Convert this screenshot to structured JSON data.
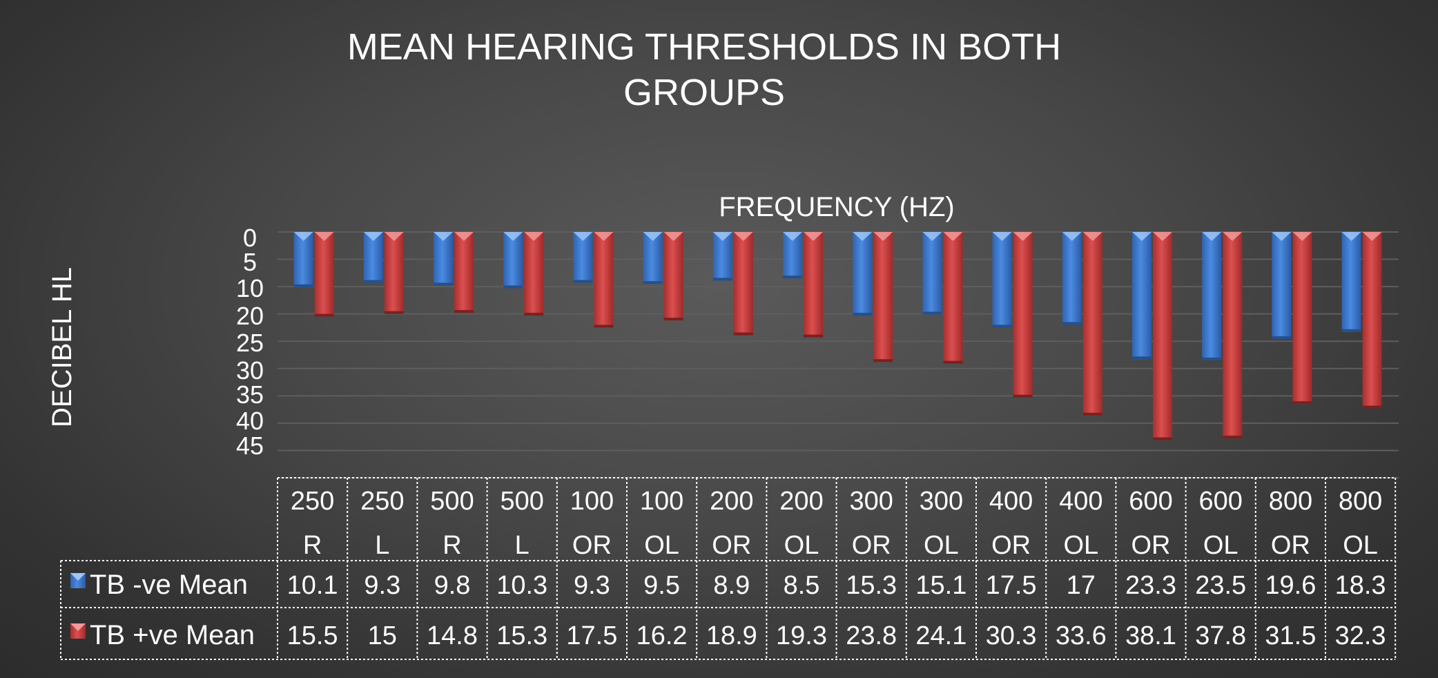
{
  "chart_data": {
    "type": "bar",
    "title_lines": [
      "MEAN HEARING THRESHOLDS IN BOTH",
      "GROUPS"
    ],
    "xlabel": "FREQUENCY (HZ)",
    "ylabel": "DECIBEL HL",
    "y_tick_labels": [
      "0",
      "5",
      "10",
      "20",
      "25",
      "30",
      "35",
      "40",
      "45"
    ],
    "categories": [
      [
        "250",
        "R"
      ],
      [
        "250",
        "L"
      ],
      [
        "500",
        "R"
      ],
      [
        "500",
        "L"
      ],
      [
        "100",
        "OR"
      ],
      [
        "100",
        "OL"
      ],
      [
        "200",
        "OR"
      ],
      [
        "200",
        "OL"
      ],
      [
        "300",
        "OR"
      ],
      [
        "300",
        "OL"
      ],
      [
        "400",
        "OR"
      ],
      [
        "400",
        "OL"
      ],
      [
        "600",
        "OR"
      ],
      [
        "600",
        "OL"
      ],
      [
        "800",
        "OR"
      ],
      [
        "800",
        "OL"
      ]
    ],
    "series": [
      {
        "name": "TB -ve Mean",
        "color": "#3f7bd0",
        "values": [
          10.1,
          9.3,
          9.8,
          10.3,
          9.3,
          9.5,
          8.9,
          8.5,
          15.3,
          15.1,
          17.5,
          17,
          23.3,
          23.5,
          19.6,
          18.3
        ],
        "labels": [
          "10.1",
          "9.3",
          "9.8",
          "10.3",
          "9.3",
          "9.5",
          "8.9",
          "8.5",
          "15.3",
          "15.1",
          "17.5",
          "17",
          "23.3",
          "23.5",
          "19.6",
          "18.3"
        ]
      },
      {
        "name": "TB +ve Mean",
        "color": "#c83c3c",
        "values": [
          15.5,
          15,
          14.8,
          15.3,
          17.5,
          16.2,
          18.9,
          19.3,
          23.8,
          24.1,
          30.3,
          33.6,
          38.1,
          37.8,
          31.5,
          32.3
        ],
        "labels": [
          "15.5",
          "15",
          "14.8",
          "15.3",
          "17.5",
          "16.2",
          "18.9",
          "19.3",
          "23.8",
          "24.1",
          "30.3",
          "33.6",
          "38.1",
          "37.8",
          "31.5",
          "32.3"
        ]
      }
    ],
    "ylim": [
      0,
      45
    ],
    "y_inverted": true,
    "grid": true,
    "legend_placement": "data table rows below chart"
  }
}
